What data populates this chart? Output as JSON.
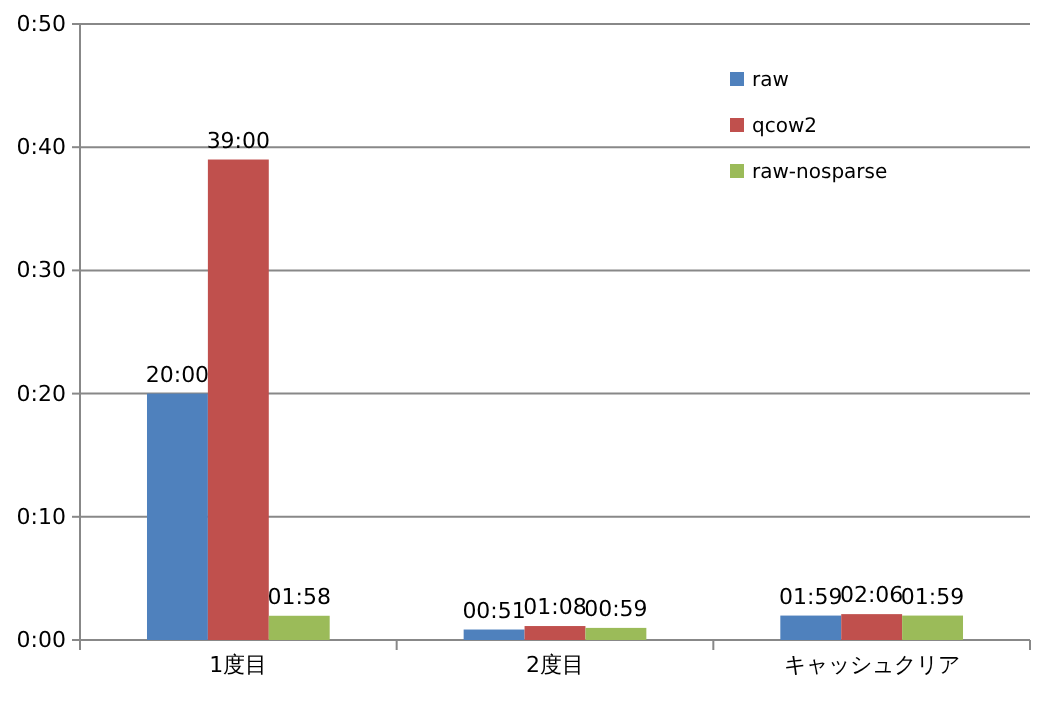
{
  "chart_data": {
    "type": "bar",
    "categories": [
      "1度目",
      "2度目",
      "キャッシュクリア"
    ],
    "series": [
      {
        "name": "raw",
        "color": "#4f81bd",
        "values": [
          20,
          0.85,
          1.983
        ],
        "value_labels": [
          "20:00",
          "00:51",
          "01:59"
        ]
      },
      {
        "name": "qcow2",
        "color": "#c0504d",
        "values": [
          39,
          1.133,
          2.1
        ],
        "value_labels": [
          "39:00",
          "01:08",
          "02:06"
        ]
      },
      {
        "name": "raw-nosparse",
        "color": "#9bbb59",
        "values": [
          1.967,
          0.983,
          1.983
        ],
        "value_labels": [
          "01:58",
          "00:59",
          "01:59"
        ]
      }
    ],
    "ylim": [
      0,
      50
    ],
    "yticks": [
      {
        "value": 0,
        "label": "0:00"
      },
      {
        "value": 10,
        "label": "0:10"
      },
      {
        "value": 20,
        "label": "0:20"
      },
      {
        "value": 30,
        "label": "0:30"
      },
      {
        "value": 40,
        "label": "0:40"
      },
      {
        "value": 50,
        "label": "0:50"
      }
    ],
    "grid": "y",
    "legend": "top right"
  }
}
